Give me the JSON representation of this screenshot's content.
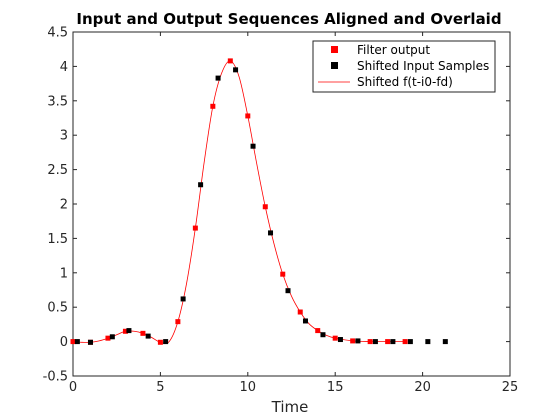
{
  "chart_data": {
    "type": "scatter",
    "title": "Input and Output Sequences Aligned and Overlaid",
    "xlabel": "Time",
    "ylabel": "",
    "xlim": [
      0,
      25
    ],
    "ylim": [
      -0.5,
      4.5
    ],
    "grid": false,
    "legend_position": "top-right",
    "x_ticks": [
      0,
      5,
      10,
      15,
      20,
      25
    ],
    "x_tick_labels": [
      "0",
      "5",
      "10",
      "15",
      "20",
      "25"
    ],
    "y_ticks": [
      -0.5,
      0,
      0.5,
      1,
      1.5,
      2,
      2.5,
      3,
      3.5,
      4,
      4.5
    ],
    "y_tick_labels": [
      "-0.5",
      "0",
      "0.5",
      "1",
      "1.5",
      "2",
      "2.5",
      "3",
      "3.5",
      "4",
      "4.5"
    ],
    "series": [
      {
        "name": "Filter output",
        "style": "markers",
        "color": "#ff0000",
        "x": [
          0,
          1,
          2,
          3,
          4,
          5,
          6,
          7,
          8,
          9,
          10,
          11,
          12,
          13,
          14,
          15,
          16,
          17,
          18,
          19
        ],
        "y": [
          0,
          -0.01,
          0.05,
          0.15,
          0.12,
          -0.01,
          0.29,
          1.65,
          3.42,
          4.08,
          3.28,
          1.96,
          0.98,
          0.43,
          0.16,
          0.05,
          0.01,
          0.0,
          0.0,
          0.0
        ]
      },
      {
        "name": "Shifted Input Samples",
        "style": "markers",
        "color": "#000000",
        "x": [
          0.25,
          1.0,
          2.25,
          3.2,
          4.3,
          5.3,
          6.3,
          7.3,
          8.3,
          9.3,
          10.3,
          11.3,
          12.3,
          13.3,
          14.3,
          15.3,
          16.3,
          17.3,
          18.3,
          19.3,
          20.3,
          21.3
        ],
        "y": [
          0,
          -0.01,
          0.07,
          0.16,
          0.08,
          0.0,
          0.62,
          2.28,
          3.83,
          3.95,
          2.84,
          1.58,
          0.74,
          0.3,
          0.1,
          0.03,
          0.01,
          0.0,
          0.0,
          0.0,
          0.0,
          0.0
        ]
      },
      {
        "name": "Shifted f(t-i0-fd)",
        "style": "line",
        "color": "#ff0000",
        "x": [
          0,
          0.5,
          1,
          1.5,
          2,
          2.5,
          3,
          3.5,
          4,
          4.5,
          5,
          5.5,
          6,
          6.5,
          7,
          7.5,
          8,
          8.5,
          9,
          9.5,
          10,
          10.5,
          11,
          11.5,
          12,
          12.5,
          13,
          13.5,
          14,
          14.5,
          15,
          16,
          17,
          18,
          19
        ],
        "y": [
          0,
          -0.01,
          -0.01,
          0.01,
          0.05,
          0.1,
          0.15,
          0.15,
          0.12,
          0.06,
          -0.01,
          0.0,
          0.29,
          0.85,
          1.65,
          2.6,
          3.42,
          3.9,
          4.08,
          3.85,
          3.28,
          2.6,
          1.96,
          1.42,
          0.98,
          0.66,
          0.43,
          0.26,
          0.16,
          0.09,
          0.05,
          0.01,
          0.0,
          0.0,
          0.0
        ]
      }
    ]
  }
}
